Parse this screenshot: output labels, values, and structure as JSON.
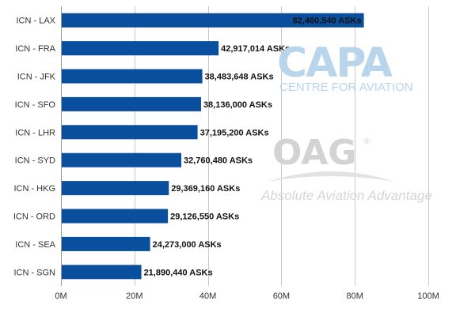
{
  "chart_data": {
    "type": "bar",
    "orientation": "horizontal",
    "title": "",
    "xlabel": "",
    "ylabel": "",
    "categories": [
      "ICN - LAX",
      "ICN - FRA",
      "ICN - JFK",
      "ICN - SFO",
      "ICN - LHR",
      "ICN - SYD",
      "ICN - HKG",
      "ICN - ORD",
      "ICN - SEA",
      "ICN - SGN"
    ],
    "values": [
      82460540,
      42917014,
      38483648,
      38136000,
      37195200,
      32760480,
      29369160,
      29126550,
      24273000,
      21890440
    ],
    "data_labels": [
      "82,460,540 ASKs",
      "42,917,014 ASKs",
      "38,483,648 ASKs",
      "38,136,000 ASKs",
      "37,195,200 ASKs",
      "32,760,480 ASKs",
      "29,369,160 ASKs",
      "29,126,550 ASKs",
      "24,273,000 ASKs",
      "21,890,440 ASKs"
    ],
    "xlim": [
      0,
      100000000
    ],
    "xticks": [
      0,
      20000000,
      40000000,
      60000000,
      80000000,
      100000000
    ],
    "xtick_labels": [
      "0M",
      "20M",
      "40M",
      "60M",
      "80M",
      "100M"
    ],
    "grid": true,
    "bar_color": "#0a4f9e"
  },
  "watermarks": {
    "capa_logo": "CAPA",
    "capa_tagline": "CENTRE FOR AVIATION",
    "oag_logo": "OAG",
    "oag_registered": "®",
    "oag_tagline": "Absolute Aviation Advantage"
  }
}
